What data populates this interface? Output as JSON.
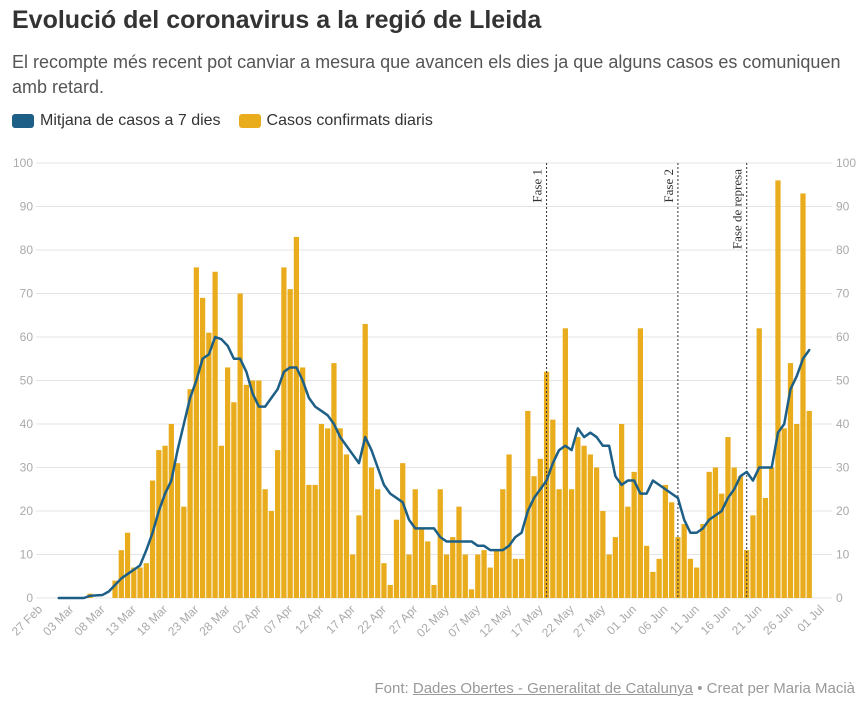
{
  "header": {
    "title": "Evolució del coronavirus a la regió de Lleida",
    "subtitle": "El recompte més recent pot canviar a mesura que avancen els dies ja que alguns casos es comuniquen amb retard."
  },
  "colors": {
    "bars": "#e8ac1c",
    "line": "#1d5f86",
    "grid": "#e4e4e4",
    "axis_text": "#aaaaaa",
    "annotation": "#333333"
  },
  "footer": {
    "prefix": "Font: ",
    "source_link": "Dades Obertes - Generalitat de Catalunya",
    "suffix": " • Creat per Maria Macià"
  },
  "chart_data": {
    "type": "bar",
    "title": "Evolució del coronavirus a la regió de Lleida",
    "subtitle": "El recompte més recent pot canviar a mesura que avancen els dies ja que alguns casos es comuniquen amb retard.",
    "legend": {
      "placement": "top-left"
    },
    "grid": true,
    "ylim": [
      0,
      100
    ],
    "yticks": [
      0,
      10,
      20,
      30,
      40,
      50,
      60,
      70,
      80,
      90,
      100
    ],
    "x_range": [
      "2020-02-27",
      "2020-07-02"
    ],
    "x_tick_labels": [
      "27 Feb",
      "03 Mar",
      "08 Mar",
      "13 Mar",
      "18 Mar",
      "23 Mar",
      "28 Mar",
      "02 Apr",
      "07 Apr",
      "12 Apr",
      "17 Apr",
      "22 Apr",
      "27 Apr",
      "02 May",
      "07 May",
      "12 May",
      "17 May",
      "22 May",
      "27 May",
      "01 Jun",
      "06 Jun",
      "11 Jun",
      "16 Jun",
      "21 Jun",
      "26 Jun",
      "01 Jul"
    ],
    "series": [
      {
        "name": "Casos confirmats diaris",
        "type": "bar",
        "start": "2020-03-01",
        "values": [
          0,
          0,
          0,
          0,
          0,
          1,
          0,
          0,
          0,
          4,
          11,
          15,
          7,
          7,
          8,
          27,
          34,
          35,
          40,
          31,
          21,
          48,
          76,
          69,
          61,
          75,
          35,
          53,
          45,
          70,
          49,
          50,
          50,
          25,
          20,
          34,
          76,
          71,
          83,
          53,
          26,
          26,
          40,
          39,
          54,
          39,
          33,
          10,
          19,
          63,
          30,
          25,
          8,
          3,
          18,
          31,
          10,
          25,
          16,
          13,
          3,
          25,
          10,
          14,
          21,
          10,
          2,
          10,
          11,
          7,
          11,
          25,
          33,
          9,
          9,
          43,
          28,
          32,
          52,
          41,
          25,
          62,
          25,
          37,
          35,
          33,
          30,
          20,
          10,
          14,
          40,
          21,
          29,
          62,
          12,
          6,
          9,
          26,
          22,
          14,
          17,
          9,
          7,
          17,
          29,
          30,
          24,
          37,
          30,
          28,
          11,
          19,
          62,
          23,
          30,
          96,
          39,
          54,
          40,
          93,
          43
        ]
      },
      {
        "name": "Mitjana de casos a 7 dies",
        "type": "line",
        "start": "2020-03-01",
        "values": [
          0,
          0,
          0,
          0,
          0,
          0.5,
          0.6,
          0.7,
          1.5,
          3,
          4.5,
          5.5,
          6.5,
          7.5,
          11,
          15,
          20,
          24,
          27,
          34,
          40,
          46,
          50,
          55,
          56,
          60,
          59.5,
          58,
          55,
          55,
          52,
          47,
          44,
          44,
          46,
          48,
          52,
          53,
          53,
          50,
          46,
          44,
          43,
          42,
          40,
          37,
          35,
          33,
          31,
          37,
          34,
          30,
          26,
          24,
          23,
          22,
          18,
          16,
          16,
          16,
          16,
          14,
          13,
          13,
          13,
          13,
          13,
          12,
          12,
          11,
          11,
          11,
          12,
          14,
          15,
          20,
          23,
          25,
          27,
          31,
          34,
          35,
          34,
          39,
          37,
          38,
          37,
          35,
          35,
          28,
          26,
          27,
          27,
          24,
          24,
          27,
          26,
          25,
          24,
          23,
          18,
          15,
          15,
          16,
          18,
          19,
          20,
          23,
          25,
          28,
          29,
          27,
          30,
          30,
          30,
          38,
          40,
          48,
          51,
          55,
          57
        ]
      }
    ],
    "annotations": [
      {
        "label": "Fase 1",
        "date": "2020-05-18"
      },
      {
        "label": "Fase 2",
        "date": "2020-06-08"
      },
      {
        "label": "Fase de represa",
        "date": "2020-06-19"
      }
    ]
  }
}
